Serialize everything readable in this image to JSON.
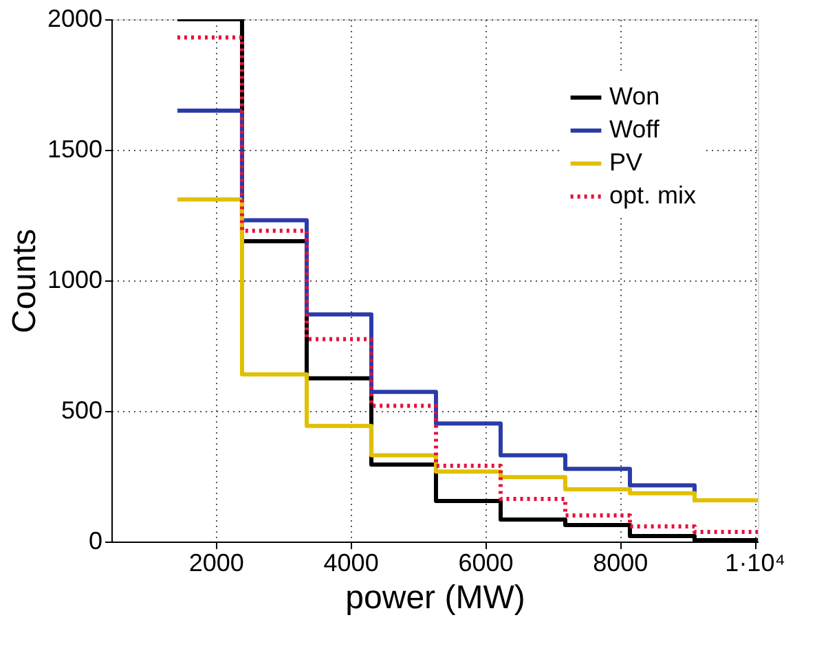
{
  "chart_data": {
    "type": "histogram",
    "xlabel": "power (MW)",
    "ylabel": "Counts",
    "bins": [
      1430,
      2390,
      3350,
      4310,
      5270,
      6230,
      7190,
      8150,
      9110,
      10050
    ],
    "series": [
      {
        "name": "Won",
        "color": "#000000",
        "values": [
          2000,
          1150,
          625,
          295,
          155,
          84,
          63,
          21,
          5
        ]
      },
      {
        "name": "Woff",
        "color": "#2a3ca8",
        "values": [
          1650,
          1230,
          870,
          573,
          452,
          330,
          278,
          215,
          158
        ]
      },
      {
        "name": "PV",
        "color": "#e0c000",
        "values": [
          1310,
          640,
          443,
          330,
          268,
          247,
          200,
          185,
          158
        ]
      },
      {
        "name": "opt. mix",
        "color": "#e8103a",
        "line_style": "dotted",
        "values": [
          1930,
          1190,
          775,
          520,
          290,
          163,
          100,
          58,
          37
        ]
      }
    ],
    "xlim": [
      450,
      10050
    ],
    "xticks": [
      2000,
      4000,
      6000,
      8000,
      {
        "value": 10000,
        "label": "1·10⁴"
      }
    ],
    "ylim": [
      0,
      2000
    ],
    "yticks": [
      0,
      500,
      1000,
      1500,
      2000
    ],
    "grid": true,
    "legend": "top right"
  }
}
